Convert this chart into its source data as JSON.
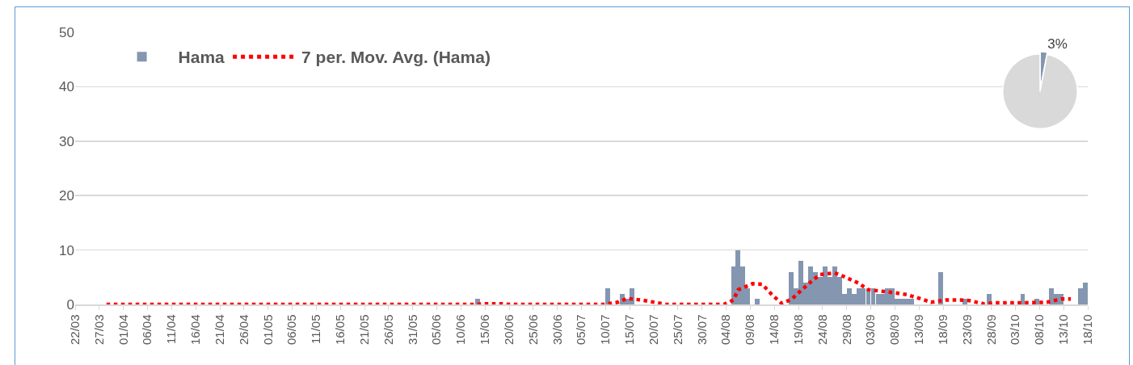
{
  "chart_data": [
    {
      "type": "bar",
      "legend": "top left",
      "grid": "y",
      "ylim": [
        0,
        50
      ],
      "yticks": [
        0,
        10,
        20,
        30,
        40,
        50
      ],
      "xlim": [
        "--03-22",
        "--10-18"
      ],
      "xticks": [
        {
          "value": "--03-22",
          "label": "22/03"
        },
        {
          "value": "--03-27",
          "label": "27/03"
        },
        {
          "value": "--04-01",
          "label": "01/04"
        },
        {
          "value": "--04-06",
          "label": "06/04"
        },
        {
          "value": "--04-11",
          "label": "11/04"
        },
        {
          "value": "--04-16",
          "label": "16/04"
        },
        {
          "value": "--04-21",
          "label": "21/04"
        },
        {
          "value": "--04-26",
          "label": "26/04"
        },
        {
          "value": "--05-01",
          "label": "01/05"
        },
        {
          "value": "--05-06",
          "label": "06/05"
        },
        {
          "value": "--05-11",
          "label": "11/05"
        },
        {
          "value": "--05-16",
          "label": "16/05"
        },
        {
          "value": "--05-21",
          "label": "21/05"
        },
        {
          "value": "--05-26",
          "label": "26/05"
        },
        {
          "value": "--05-31",
          "label": "31/05"
        },
        {
          "value": "--06-05",
          "label": "05/06"
        },
        {
          "value": "--06-10",
          "label": "10/06"
        },
        {
          "value": "--06-15",
          "label": "15/06"
        },
        {
          "value": "--06-20",
          "label": "20/06"
        },
        {
          "value": "--06-25",
          "label": "25/06"
        },
        {
          "value": "--06-30",
          "label": "30/06"
        },
        {
          "value": "--07-05",
          "label": "05/07"
        },
        {
          "value": "--07-10",
          "label": "10/07"
        },
        {
          "value": "--07-15",
          "label": "15/07"
        },
        {
          "value": "--07-20",
          "label": "20/07"
        },
        {
          "value": "--07-25",
          "label": "25/07"
        },
        {
          "value": "--07-30",
          "label": "30/07"
        },
        {
          "value": "--08-04",
          "label": "04/08"
        },
        {
          "value": "--08-09",
          "label": "09/08"
        },
        {
          "value": "--08-14",
          "label": "14/08"
        },
        {
          "value": "--08-19",
          "label": "19/08"
        },
        {
          "value": "--08-24",
          "label": "24/08"
        },
        {
          "value": "--08-29",
          "label": "29/08"
        },
        {
          "value": "--09-03",
          "label": "03/09"
        },
        {
          "value": "--09-08",
          "label": "08/09"
        },
        {
          "value": "--09-13",
          "label": "13/09"
        },
        {
          "value": "--09-18",
          "label": "18/09"
        },
        {
          "value": "--09-23",
          "label": "23/09"
        },
        {
          "value": "--09-28",
          "label": "28/09"
        },
        {
          "value": "--10-03",
          "label": "03/10"
        },
        {
          "value": "--10-08",
          "label": "08/10"
        },
        {
          "value": "--10-13",
          "label": "13/10"
        },
        {
          "value": "--10-18",
          "label": "18/10"
        }
      ],
      "series": [
        {
          "name": "Hama",
          "type": "bar",
          "color": "#8496b0",
          "x": [
            "--06-13",
            "--07-10",
            "--07-13",
            "--07-14",
            "--07-15",
            "--08-05",
            "--08-06",
            "--08-07",
            "--08-08",
            "--08-10",
            "--08-17",
            "--08-18",
            "--08-19",
            "--08-20",
            "--08-21",
            "--08-22",
            "--08-23",
            "--08-24",
            "--08-25",
            "--08-26",
            "--08-27",
            "--08-28",
            "--08-29",
            "--08-30",
            "--08-31",
            "--09-01",
            "--09-02",
            "--09-03",
            "--09-04",
            "--09-05",
            "--09-06",
            "--09-07",
            "--09-08",
            "--09-09",
            "--09-10",
            "--09-11",
            "--09-17",
            "--09-22",
            "--09-27",
            "--10-04",
            "--10-07",
            "--10-10",
            "--10-11",
            "--10-12",
            "--10-16",
            "--10-17"
          ],
          "values": [
            1,
            3,
            2,
            1,
            3,
            7,
            10,
            7,
            3,
            1,
            6,
            3,
            8,
            4,
            7,
            6,
            5,
            7,
            5,
            7,
            5,
            2,
            3,
            2,
            3,
            3,
            3,
            3,
            2,
            2,
            3,
            3,
            1,
            1,
            1,
            1,
            6,
            1,
            2,
            2,
            1,
            3,
            2,
            2,
            3,
            4
          ]
        },
        {
          "name": "7 per. Mov. Avg. (Hama)",
          "type": "line",
          "line_style": "dotted",
          "color": "#ff0000",
          "x": [
            "--03-28",
            "--06-12",
            "--06-14",
            "--06-18",
            "--06-20",
            "--07-09",
            "--07-12",
            "--07-14",
            "--07-17",
            "--07-19",
            "--07-22",
            "--08-03",
            "--08-05",
            "--08-06",
            "--08-09",
            "--08-11",
            "--08-13",
            "--08-15",
            "--08-17",
            "--08-19",
            "--08-21",
            "--08-23",
            "--08-26",
            "--08-28",
            "--08-31",
            "--09-02",
            "--09-05",
            "--09-07",
            "--09-10",
            "--09-13",
            "--09-15",
            "--09-18",
            "--09-21",
            "--09-23",
            "--09-26",
            "--09-28",
            "--10-04",
            "--10-09",
            "--10-12",
            "--10-14"
          ],
          "values": [
            0,
            0,
            0.1,
            0.1,
            0,
            0,
            0.4,
            1.1,
            0.8,
            0.5,
            0,
            0,
            0.8,
            2.7,
            3.8,
            3.7,
            1.8,
            0.2,
            0.9,
            2.5,
            4.1,
            5.5,
            5.8,
            5.1,
            3.9,
            2.7,
            2.4,
            2.2,
            1.8,
            1.0,
            0.4,
            0.8,
            0.8,
            0.7,
            0.1,
            0.3,
            0.3,
            0.4,
            1.0,
            1.0
          ]
        }
      ]
    },
    {
      "type": "pie",
      "categories": [
        null,
        null
      ],
      "values": [
        3,
        97
      ],
      "colors": [
        "#8496b0",
        "#d9d9d9"
      ],
      "value_labels": [
        "3%",
        null
      ]
    }
  ]
}
